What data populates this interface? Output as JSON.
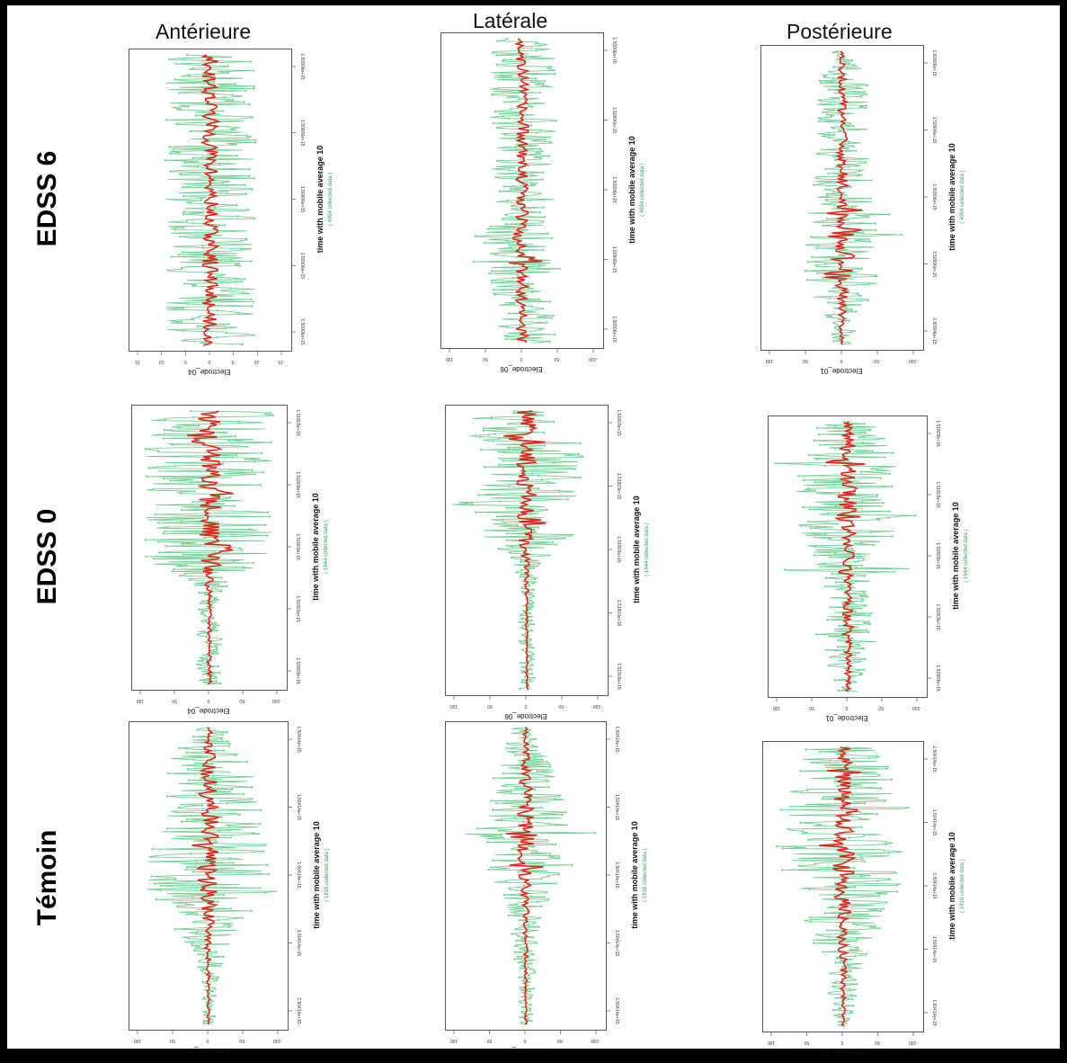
{
  "columns": [
    "Antérieure",
    "Latérale",
    "Postérieure"
  ],
  "rows": [
    "EDSS 6",
    "EDSS 0",
    "Témoin"
  ],
  "colors": {
    "raw": "#66cc88",
    "average": "#e0241b",
    "frame": "#000000"
  },
  "chart_data": [
    {
      "type": "line",
      "row": "EDSS 6",
      "column": "Antérieure",
      "ylabel": "Electrode_04",
      "xlabel": "time with mobile average 10",
      "note": "( 4994 collected data )",
      "y_ticks": [
        "15",
        "10",
        "5",
        "0",
        "-5",
        "-10",
        "-15"
      ],
      "x_ticks": [
        "1.50906e+15",
        "1.50906e+15",
        "1.50906e+15",
        "1.50906e+15",
        "1.50906e+15"
      ],
      "profile": [
        0.6,
        0.6,
        0.6,
        0.6,
        0.6,
        0.6,
        0.6,
        0.6,
        0.6,
        0.6
      ],
      "spikes": []
    },
    {
      "type": "line",
      "row": "EDSS 6",
      "column": "Latérale",
      "ylabel": "Electrode_06",
      "xlabel": "time with mobile average 10",
      "note": "( 4994 collected data )",
      "y_ticks": [
        "100",
        "50",
        "0",
        "-50",
        "-100"
      ],
      "x_ticks": [
        "1.50906e+15",
        "1.50906e+15",
        "1.50906e+15",
        "1.50906e+15",
        "1.50906e+15"
      ],
      "profile": [
        0.45,
        0.45,
        0.45,
        0.45,
        0.45,
        0.45,
        0.5,
        0.5,
        0.45,
        0.45
      ],
      "spikes": [
        0.65,
        0.73
      ]
    },
    {
      "type": "line",
      "row": "EDSS 6",
      "column": "Postérieure",
      "ylabel": "Electrode_01",
      "xlabel": "time with mobile average 10",
      "note": "( 4994 collected data )",
      "y_ticks": [
        "100",
        "50",
        "0",
        "-50",
        "-100"
      ],
      "x_ticks": [
        "1.50906e+15",
        "1.50906e+15",
        "1.50906e+15",
        "1.50906e+15",
        "1.50906e+15"
      ],
      "profile": [
        0.15,
        0.35,
        0.35,
        0.35,
        0.4,
        0.45,
        0.5,
        0.5,
        0.3,
        0.1
      ],
      "spikes": [
        0.55,
        0.62,
        0.7,
        0.76
      ]
    },
    {
      "type": "line",
      "row": "EDSS 0",
      "column": "Antérieure",
      "ylabel": "Electrode_04",
      "xlabel": "time with mobile average 10",
      "note": "( 1644 collected data )",
      "y_ticks": [
        "100",
        "50",
        "0",
        "-50",
        "-100"
      ],
      "x_ticks": [
        "1.51803e+15",
        "1.51803e+15",
        "1.51803e+15",
        "1.51803e+15",
        "1.51803e+15"
      ],
      "profile": [
        0.9,
        0.9,
        0.9,
        0.9,
        0.9,
        0.9,
        0.15,
        0.15,
        0.2,
        0.15
      ],
      "spikes": [
        0.1,
        0.3,
        0.5
      ]
    },
    {
      "type": "line",
      "row": "EDSS 0",
      "column": "Latérale",
      "ylabel": "Electrode_06",
      "xlabel": "time with mobile average 10",
      "note": "( 1644 collected data )",
      "y_ticks": [
        "100",
        "50",
        "0",
        "-50",
        "-100"
      ],
      "x_ticks": [
        "1.51803e+15",
        "1.51803e+15",
        "1.51803e+15",
        "1.51803e+15",
        "1.51803e+15"
      ],
      "profile": [
        0.75,
        0.75,
        0.75,
        0.75,
        0.75,
        0.2,
        0.1,
        0.1,
        0.1,
        0.1
      ],
      "spikes": [
        0.1,
        0.33,
        0.4
      ]
    },
    {
      "type": "line",
      "row": "EDSS 0",
      "column": "Postérieure",
      "ylabel": "Electrode_01",
      "xlabel": "time with mobile average 10",
      "note": "( 1644 collected data )",
      "y_ticks": [
        "100",
        "50",
        "0",
        "-50",
        "-100"
      ],
      "x_ticks": [
        "1.51803e+15",
        "1.51803e+15",
        "1.51803e+15",
        "1.51803e+15",
        "1.51803e+15"
      ],
      "profile": [
        0.35,
        0.65,
        0.7,
        0.7,
        0.65,
        0.35,
        0.3,
        0.45,
        0.3,
        0.15
      ],
      "spikes": [
        0.15,
        0.35,
        0.55
      ]
    },
    {
      "type": "line",
      "row": "Témoin",
      "column": "Antérieure",
      "ylabel": "Electrode_04",
      "xlabel": "time with mobile average 10",
      "note": "( 1816 collected data )",
      "y_ticks": [
        "100",
        "50",
        "0",
        "-50",
        "-100"
      ],
      "x_ticks": [
        "1.50414e+15",
        "1.50414e+15",
        "1.50414e+15",
        "1.50414e+15",
        "1.50414e+15"
      ],
      "profile": [
        0.25,
        0.55,
        0.75,
        0.8,
        0.85,
        0.8,
        0.5,
        0.2,
        0.1,
        0.08
      ],
      "spikes": [
        0.4,
        0.55
      ]
    },
    {
      "type": "line",
      "row": "Témoin",
      "column": "Latérale",
      "ylabel": "Electrode_06",
      "xlabel": "time with mobile average 10",
      "note": "( 1816 collected data )",
      "y_ticks": [
        "100",
        "50",
        "0",
        "-50",
        "-100"
      ],
      "x_ticks": [
        "1.50414e+15",
        "1.50414e+15",
        "1.50414e+15",
        "1.50414e+15",
        "1.50414e+15"
      ],
      "profile": [
        0.2,
        0.3,
        0.55,
        0.65,
        0.65,
        0.35,
        0.2,
        0.15,
        0.1,
        0.1
      ],
      "spikes": [
        0.36,
        0.46
      ]
    },
    {
      "type": "line",
      "row": "Témoin",
      "column": "Postérieure",
      "ylabel": "Electrode_01",
      "xlabel": "time with mobile average 10",
      "note": "( 1816 collected data )",
      "y_ticks": [
        "100",
        "50",
        "0",
        "-50",
        "-100"
      ],
      "x_ticks": [
        "1.50414e+15",
        "1.50414e+15",
        "1.50414e+15",
        "1.50414e+15",
        "1.50414e+15"
      ],
      "profile": [
        0.55,
        0.7,
        0.75,
        0.8,
        0.85,
        0.7,
        0.45,
        0.3,
        0.2,
        0.1
      ],
      "spikes": [
        0.08,
        0.22,
        0.36,
        0.5
      ]
    }
  ]
}
